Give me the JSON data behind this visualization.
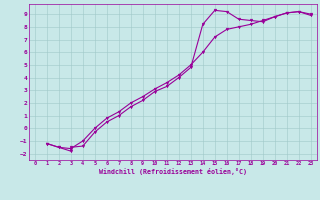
{
  "xlabel": "Windchill (Refroidissement éolien,°C)",
  "bg_color": "#c8e8e8",
  "grid_color": "#a0c8c8",
  "line_color": "#990099",
  "xlim": [
    -0.5,
    23.5
  ],
  "ylim": [
    -2.5,
    9.8
  ],
  "xticks": [
    0,
    1,
    2,
    3,
    4,
    5,
    6,
    7,
    8,
    9,
    10,
    11,
    12,
    13,
    14,
    15,
    16,
    17,
    18,
    19,
    20,
    21,
    22,
    23
  ],
  "yticks": [
    -2,
    -1,
    0,
    1,
    2,
    3,
    4,
    5,
    6,
    7,
    8,
    9
  ],
  "line1_x": [
    1,
    2,
    3,
    3,
    4,
    5,
    6,
    7,
    8,
    9,
    10,
    11,
    12,
    13,
    14,
    15,
    16,
    17,
    18,
    19,
    20,
    21,
    22,
    23
  ],
  "line1_y": [
    -1.2,
    -1.5,
    -1.8,
    -1.5,
    -1.4,
    -0.3,
    0.5,
    1.0,
    1.7,
    2.2,
    2.9,
    3.3,
    4.0,
    4.8,
    8.2,
    9.3,
    9.2,
    8.6,
    8.5,
    8.4,
    8.8,
    9.1,
    9.2,
    8.9
  ],
  "line2_x": [
    1,
    2,
    3,
    4,
    5,
    6,
    7,
    8,
    9,
    10,
    11,
    12,
    13,
    14,
    15,
    16,
    17,
    18,
    19,
    20,
    21,
    22,
    23
  ],
  "line2_y": [
    -1.2,
    -1.5,
    -1.6,
    -1.0,
    0.0,
    0.8,
    1.3,
    2.0,
    2.5,
    3.1,
    3.6,
    4.2,
    5.0,
    6.0,
    7.2,
    7.8,
    8.0,
    8.2,
    8.5,
    8.8,
    9.1,
    9.2,
    9.0
  ],
  "figsize": [
    3.2,
    2.0
  ],
  "dpi": 100
}
